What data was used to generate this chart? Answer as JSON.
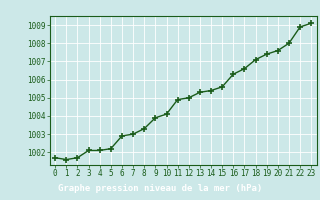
{
  "x": [
    0,
    1,
    2,
    3,
    4,
    5,
    6,
    7,
    8,
    9,
    10,
    11,
    12,
    13,
    14,
    15,
    16,
    17,
    18,
    19,
    20,
    21,
    22,
    23
  ],
  "y": [
    1001.7,
    1001.6,
    1001.7,
    1002.1,
    1002.1,
    1002.2,
    1002.9,
    1003.0,
    1003.3,
    1003.9,
    1004.1,
    1004.9,
    1005.0,
    1005.3,
    1005.4,
    1005.6,
    1006.3,
    1006.6,
    1007.1,
    1007.4,
    1007.6,
    1008.0,
    1008.9,
    1009.1
  ],
  "line_color": "#1a5c1a",
  "marker": "+",
  "marker_size": 4,
  "marker_linewidth": 1.2,
  "line_width": 1.0,
  "xlabel": "Graphe pression niveau de la mer (hPa)",
  "xlabel_fontsize": 6.5,
  "xlabel_color": "#ffffff",
  "tick_label_color": "#1a5c1a",
  "tick_fontsize": 5.5,
  "ylim": [
    1001.3,
    1009.5
  ],
  "yticks": [
    1002,
    1003,
    1004,
    1005,
    1006,
    1007,
    1008,
    1009
  ],
  "xlim": [
    -0.5,
    23.5
  ],
  "bg_color": "#cce8e8",
  "grid_color": "#ffffff",
  "grid_linewidth": 0.6,
  "spine_color": "#1a5c1a",
  "bottom_bar_color": "#2d6e2d"
}
